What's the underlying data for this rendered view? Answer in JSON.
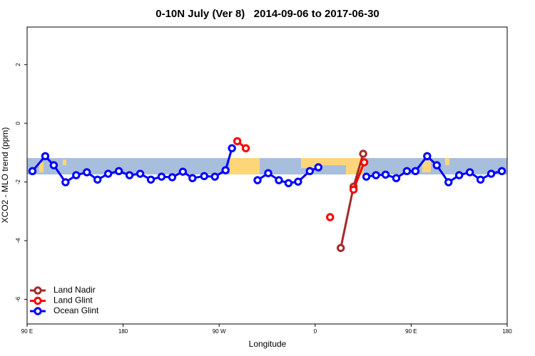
{
  "chart_data": {
    "type": "line",
    "title": "0-10N July (Ver 8)   2014-09-06 to 2017-06-30",
    "x_label": "Longitude",
    "y_label": "XCO2 - MLO trend (ppm)",
    "xlim": [
      90,
      540
    ],
    "xticks": [
      {
        "value": 90,
        "label": "90 E"
      },
      {
        "value": 180,
        "label": "180"
      },
      {
        "value": 270,
        "label": "90 W"
      },
      {
        "value": 360,
        "label": "0"
      },
      {
        "value": 450,
        "label": "90 E"
      },
      {
        "value": 540,
        "label": "180"
      }
    ],
    "ylim": [
      -6.84,
      3.28
    ],
    "yticks": [
      2,
      0,
      -2,
      -4,
      -6
    ],
    "legend": "bottom-left",
    "series": [
      {
        "name": "Land Nadir",
        "color": "#a52a2a",
        "x": [
          384,
          396,
          405
        ],
        "values": [
          -4.25,
          -2.16,
          -1.04
        ]
      },
      {
        "name": "Land Glint",
        "color": "#ff0000",
        "x": [
          287,
          295,
          null,
          374,
          null,
          396,
          406
        ],
        "values": [
          -0.61,
          -0.85,
          null,
          -3.2,
          null,
          -2.26,
          -1.33
        ]
      },
      {
        "name": "Ocean Glint",
        "color": "#0000ff",
        "x": [
          95,
          107,
          115,
          126,
          136,
          146,
          156,
          166,
          176,
          186,
          196,
          206,
          216,
          226,
          236,
          245,
          256,
          266,
          276,
          282,
          null,
          306,
          316,
          326,
          335,
          344,
          355,
          363,
          null,
          408,
          417,
          426,
          436,
          446,
          454,
          465,
          474,
          485,
          495,
          505,
          515,
          525,
          535
        ],
        "values": [
          -1.63,
          -1.12,
          -1.43,
          -2.01,
          -1.77,
          -1.67,
          -1.92,
          -1.72,
          -1.63,
          -1.77,
          -1.72,
          -1.92,
          -1.82,
          -1.84,
          -1.65,
          -1.87,
          -1.8,
          -1.82,
          -1.6,
          -0.85,
          null,
          -1.94,
          -1.7,
          -1.94,
          -2.04,
          -1.99,
          -1.63,
          -1.5,
          null,
          -1.82,
          -1.77,
          -1.75,
          -1.87,
          -1.63,
          -1.63,
          -1.12,
          -1.43,
          -2.01,
          -1.77,
          -1.67,
          -1.92,
          -1.72,
          -1.63
        ]
      }
    ]
  }
}
